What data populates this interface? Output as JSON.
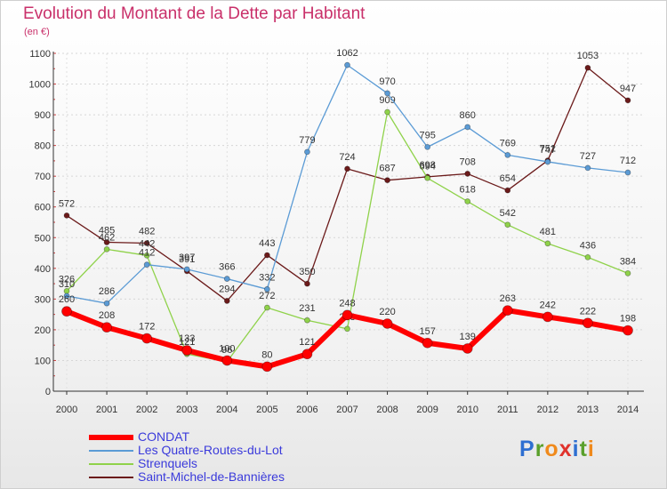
{
  "title": "Evolution du Montant de la Dette par Habitant",
  "subtitle": "(en €)",
  "logo": {
    "letters": [
      "P",
      "r",
      "o",
      "x",
      "i",
      "t",
      "i"
    ],
    "colors": [
      "#2e6fd1",
      "#5aa02c",
      "#f08a1c",
      "#e0322c",
      "#2e6fd1",
      "#5aa02c",
      "#f08a1c"
    ]
  },
  "chart_data": {
    "type": "line",
    "x": [
      "2000",
      "2001",
      "2002",
      "2003",
      "2004",
      "2005",
      "2006",
      "2007",
      "2008",
      "2009",
      "2010",
      "2011",
      "2012",
      "2013",
      "2014"
    ],
    "ylim": [
      0,
      1100
    ],
    "yticks": [
      "0",
      "100",
      "200",
      "300",
      "400",
      "500",
      "600",
      "700",
      "800",
      "900",
      "1000",
      "1100"
    ],
    "grid": true,
    "legend_position": "bottom-left",
    "series": [
      {
        "name": "Saint-Michel-de-Bannières",
        "color": "#6b1a1a",
        "width": 1.3,
        "marker": 3,
        "values": [
          572,
          485,
          482,
          391,
          294,
          443,
          350,
          724,
          687,
          698,
          708,
          654,
          751,
          1053,
          947
        ],
        "labels": [
          "572",
          "485",
          "482",
          "391",
          "294",
          "443",
          "350",
          "724",
          "687",
          "698",
          "708",
          "654",
          "751",
          "1053",
          "947"
        ]
      },
      {
        "name": "Strenquels",
        "color": "#8fd24a",
        "width": 1.3,
        "marker": 3,
        "values": [
          326,
          462,
          442,
          121,
          96,
          272,
          231,
          203,
          909,
          694,
          618,
          542,
          481,
          436,
          384
        ],
        "labels": [
          "326",
          "462",
          "442",
          "121",
          "96",
          "272",
          "231",
          "203",
          "909",
          "694",
          "618",
          "542",
          "481",
          "436",
          "384"
        ]
      },
      {
        "name": "Les Quatre-Routes-du-Lot",
        "color": "#5b9bd5",
        "width": 1.3,
        "marker": 3,
        "values": [
          310,
          286,
          412,
          397,
          366,
          332,
          779,
          1062,
          970,
          795,
          860,
          769,
          747,
          727,
          712
        ],
        "labels": [
          "310",
          "286",
          "412",
          "397",
          "366",
          "332",
          "779",
          "1062",
          "970",
          "795",
          "860",
          "769",
          "747",
          "727",
          "712"
        ]
      },
      {
        "name": "CONDAT",
        "color": "#ff0000",
        "width": 6,
        "marker": 5.5,
        "values": [
          260,
          208,
          172,
          133,
          100,
          80,
          121,
          248,
          220,
          157,
          139,
          263,
          242,
          222,
          198
        ],
        "labels": [
          "260",
          "208",
          "172",
          "133",
          "100",
          "80",
          "121",
          "248",
          "220",
          "157",
          "139",
          "263",
          "242",
          "222",
          "198"
        ]
      }
    ],
    "legend": [
      {
        "name": "CONDAT",
        "color": "#ff0000"
      },
      {
        "name": "Les Quatre-Routes-du-Lot",
        "color": "#5b9bd5"
      },
      {
        "name": "Strenquels",
        "color": "#8fd24a"
      },
      {
        "name": "Saint-Michel-de-Bannières",
        "color": "#6b1a1a"
      }
    ]
  }
}
